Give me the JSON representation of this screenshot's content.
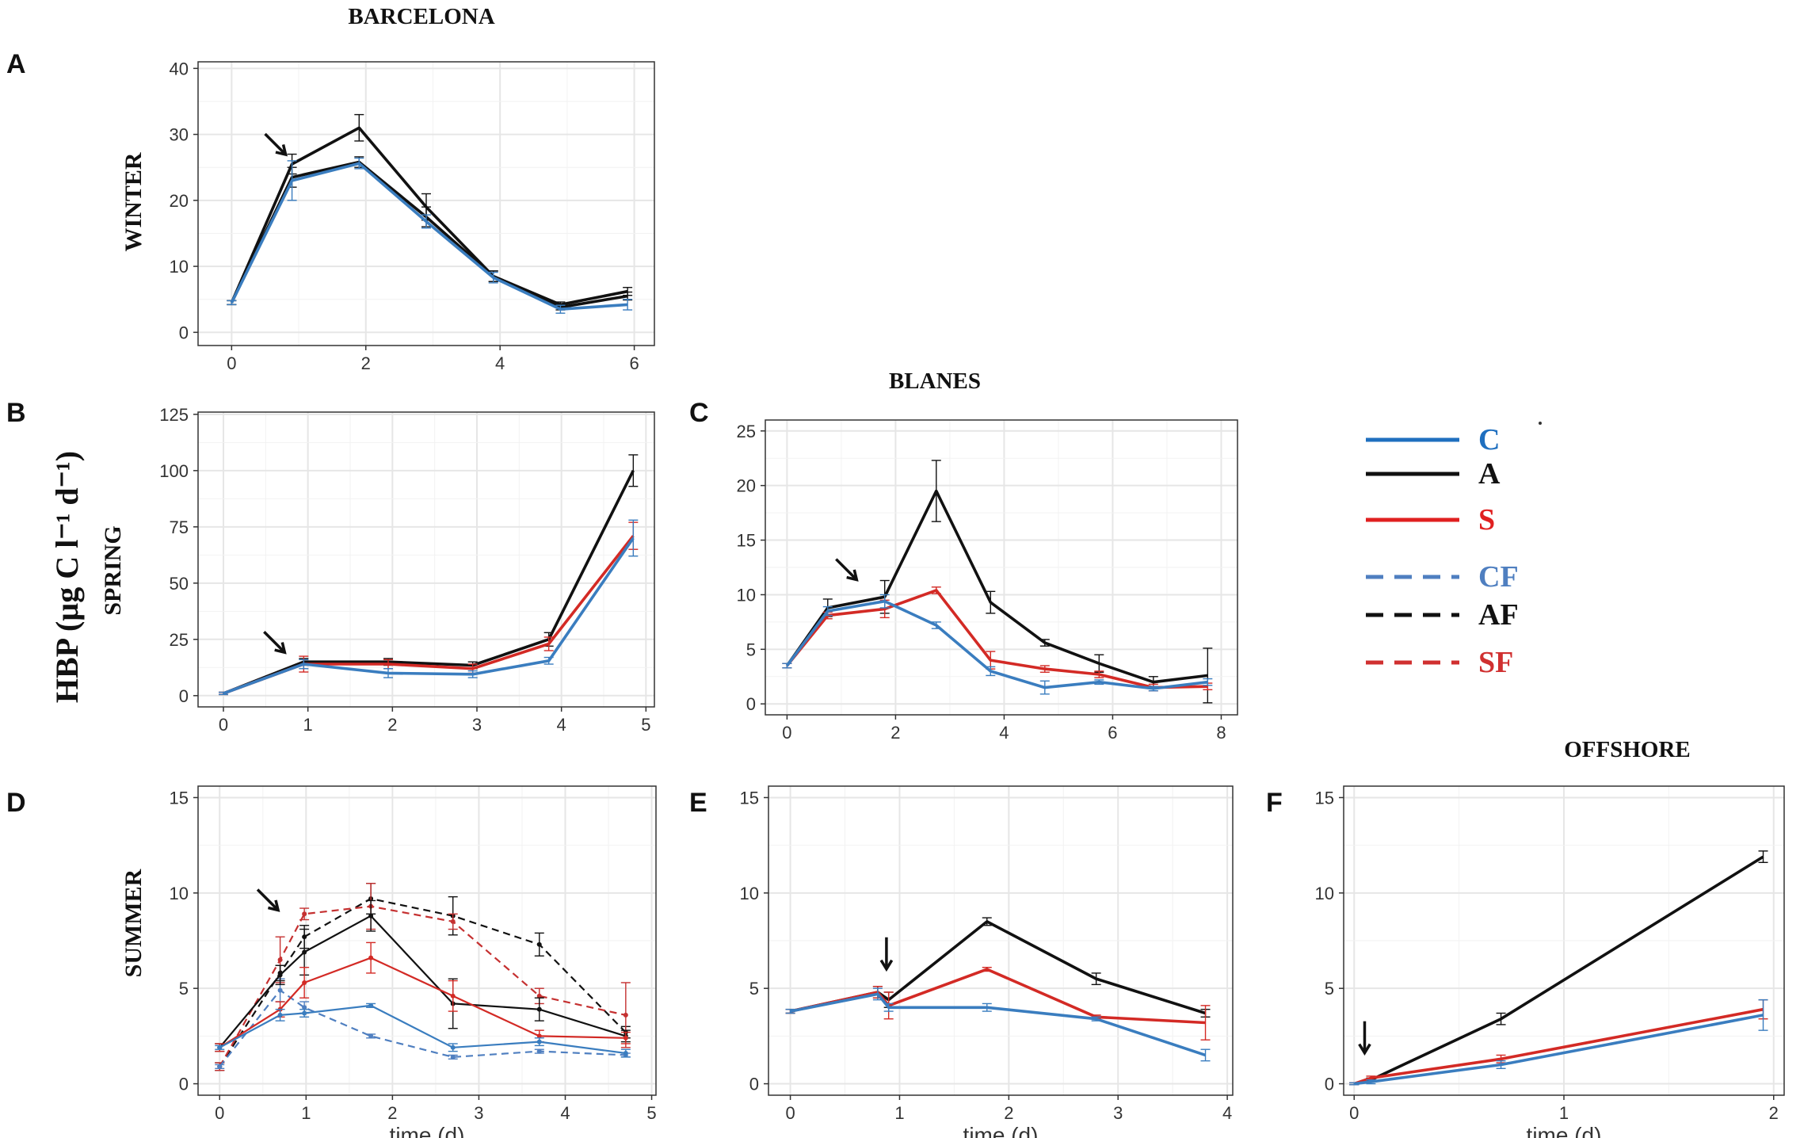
{
  "figure": {
    "ylabel": "HBP (µg C l⁻¹ d⁻¹)",
    "xlabel": "time (d)",
    "site_headers": [
      "BARCELONA",
      "BLANES",
      "OFFSHORE"
    ],
    "season_labels": [
      "WINTER",
      "SPRING",
      "SUMMER"
    ]
  },
  "colors": {
    "C": "#3a7dbf",
    "A": "#111111",
    "S": "#d32a25",
    "CF": "#4f7fc0",
    "AF": "#111111",
    "SF": "#c53030"
  },
  "legend": [
    {
      "key": "C",
      "label": "C",
      "color": "#1f6fbf",
      "dash": false
    },
    {
      "key": "A",
      "label": "A",
      "color": "#111111",
      "dash": false
    },
    {
      "key": "S",
      "label": "S",
      "color": "#e02020",
      "dash": false
    },
    {
      "key": "CF",
      "label": "CF",
      "color": "#4f7fc0",
      "dash": true
    },
    {
      "key": "AF",
      "label": "AF",
      "color": "#111111",
      "dash": true
    },
    {
      "key": "SF",
      "label": "SF",
      "color": "#d03030",
      "dash": true
    }
  ],
  "chart_data": [
    {
      "panel": "A",
      "type": "line",
      "site": "BARCELONA",
      "season": "WINTER",
      "xlabel": "",
      "xlim": [
        -0.5,
        6.3
      ],
      "ylim": [
        -2,
        41
      ],
      "xticks": [
        0,
        2,
        4,
        6
      ],
      "yticks": [
        0,
        10,
        20,
        30,
        40
      ],
      "arrow_at": [
        0.9,
        25.5
      ],
      "series": [
        {
          "name": "A",
          "dash": false,
          "x": [
            0,
            0.9,
            1.9,
            2.9,
            3.9,
            4.9,
            5.9
          ],
          "y": [
            4.5,
            25.5,
            31.0,
            19.0,
            8.5,
            4.2,
            6.2
          ],
          "err": [
            0.3,
            1.5,
            2.0,
            2.0,
            0.8,
            0.4,
            0.6
          ]
        },
        {
          "name": "A",
          "dash": false,
          "x": [
            0,
            0.9,
            1.9,
            2.9,
            3.9,
            4.9,
            5.9
          ],
          "y": [
            4.5,
            23.5,
            25.8,
            17.5,
            8.5,
            3.8,
            5.5
          ],
          "err": [
            0.3,
            1.5,
            0.8,
            1.5,
            0.8,
            0.4,
            0.6
          ]
        },
        {
          "name": "C",
          "dash": false,
          "x": [
            0,
            0.9,
            1.9,
            2.9,
            3.9,
            4.9,
            5.9
          ],
          "y": [
            4.5,
            23.0,
            25.6,
            16.8,
            8.3,
            3.5,
            4.2
          ],
          "err": [
            0.3,
            3.0,
            0.8,
            1.0,
            0.8,
            0.6,
            0.8
          ]
        }
      ]
    },
    {
      "panel": "B",
      "type": "line",
      "site": "BARCELONA",
      "season": "SPRING",
      "xlabel": "",
      "xlim": [
        -0.3,
        5.1
      ],
      "ylim": [
        -5,
        126
      ],
      "xticks": [
        0,
        1,
        2,
        3,
        4,
        5
      ],
      "yticks": [
        0,
        25,
        50,
        75,
        100,
        125
      ],
      "arrow_at": [
        0.8,
        15
      ],
      "series": [
        {
          "name": "A",
          "dash": false,
          "x": [
            0,
            0.95,
            1.95,
            2.95,
            3.85,
            4.85
          ],
          "y": [
            1,
            15,
            15,
            13.5,
            25,
            100
          ],
          "err": [
            0.5,
            1.5,
            1.5,
            1.5,
            3,
            7
          ]
        },
        {
          "name": "S",
          "dash": false,
          "x": [
            0,
            0.95,
            1.95,
            2.95,
            3.85,
            4.85
          ],
          "y": [
            1,
            14,
            14,
            12,
            23,
            71
          ],
          "err": [
            0.5,
            3.5,
            2,
            2,
            3,
            6
          ]
        },
        {
          "name": "C",
          "dash": false,
          "x": [
            0,
            0.95,
            1.95,
            2.95,
            3.85,
            4.85
          ],
          "y": [
            1,
            14,
            10,
            9.5,
            15.5,
            70
          ],
          "err": [
            0.5,
            2,
            2,
            1.5,
            1.5,
            8
          ]
        }
      ]
    },
    {
      "panel": "C",
      "type": "line",
      "site": "BLANES",
      "season": "SPRING",
      "xlabel": "",
      "xlim": [
        -0.4,
        8.3
      ],
      "ylim": [
        -1,
        26
      ],
      "xticks": [
        0,
        2,
        4,
        6,
        8
      ],
      "yticks": [
        0,
        5,
        10,
        15,
        20,
        25
      ],
      "arrow_at": [
        1.4,
        10.5
      ],
      "series": [
        {
          "name": "A",
          "dash": false,
          "x": [
            0,
            0.75,
            1.8,
            2.75,
            3.75,
            4.75,
            5.75,
            6.75,
            7.75
          ],
          "y": [
            3.5,
            8.8,
            9.8,
            19.5,
            9.3,
            5.6,
            3.7,
            2.0,
            2.6
          ],
          "err": [
            0.2,
            0.8,
            1.5,
            2.8,
            1.0,
            0.3,
            0.8,
            0.5,
            2.5
          ]
        },
        {
          "name": "S",
          "dash": false,
          "x": [
            0,
            0.75,
            1.8,
            2.75,
            3.75,
            4.75,
            5.75,
            6.75,
            7.75
          ],
          "y": [
            3.5,
            8.1,
            8.7,
            10.4,
            4.0,
            3.2,
            2.7,
            1.5,
            1.6
          ],
          "err": [
            0.2,
            0.3,
            0.8,
            0.3,
            0.8,
            0.3,
            0.3,
            0.3,
            0.3
          ]
        },
        {
          "name": "C",
          "dash": false,
          "x": [
            0,
            0.75,
            1.8,
            2.75,
            3.75,
            4.75,
            5.75,
            6.75,
            7.75
          ],
          "y": [
            3.5,
            8.5,
            9.4,
            7.2,
            3.0,
            1.5,
            2.0,
            1.4,
            2.0
          ],
          "err": [
            0.2,
            0.4,
            0.6,
            0.3,
            0.4,
            0.6,
            0.2,
            0.2,
            0.3
          ]
        }
      ]
    },
    {
      "panel": "D",
      "type": "line",
      "site": "BARCELONA",
      "season": "SUMMER",
      "xlabel": "time (d)",
      "xlim": [
        -0.25,
        5.05
      ],
      "ylim": [
        -0.6,
        15.6
      ],
      "xticks": [
        0,
        1,
        2,
        3,
        4,
        5
      ],
      "yticks": [
        0,
        5,
        10,
        15
      ],
      "arrow_at": [
        0.75,
        8.6
      ],
      "series": [
        {
          "name": "AF",
          "dash": true,
          "x": [
            0,
            0.7,
            0.98,
            1.75,
            2.7,
            3.7,
            4.7
          ],
          "y": [
            0.9,
            5.8,
            7.7,
            9.7,
            8.8,
            7.3,
            2.7
          ],
          "err": [
            0.2,
            0.4,
            0.6,
            0.8,
            1.0,
            0.6,
            0.3
          ]
        },
        {
          "name": "SF",
          "dash": true,
          "x": [
            0,
            0.7,
            0.98,
            1.75,
            2.7,
            3.7,
            4.7
          ],
          "y": [
            0.9,
            6.5,
            8.9,
            9.3,
            8.5,
            4.6,
            3.6
          ],
          "err": [
            0.2,
            1.2,
            0.3,
            1.2,
            0.4,
            0.4,
            1.7
          ]
        },
        {
          "name": "CF",
          "dash": true,
          "x": [
            0,
            0.7,
            0.98,
            1.75,
            2.7,
            3.7,
            4.7
          ],
          "y": [
            0.9,
            4.9,
            4.0,
            2.5,
            1.4,
            1.7,
            1.5
          ],
          "err": [
            0.1,
            0.6,
            0.3,
            0.1,
            0.1,
            0.1,
            0.1
          ]
        },
        {
          "name": "A",
          "dash": false,
          "x": [
            0,
            0.7,
            0.98,
            1.75,
            2.7,
            3.7,
            4.7
          ],
          "y": [
            1.9,
            5.7,
            6.9,
            8.8,
            4.2,
            3.9,
            2.5
          ],
          "err": [
            0.2,
            0.5,
            1.2,
            0.8,
            1.3,
            0.6,
            0.3
          ]
        },
        {
          "name": "S",
          "dash": false,
          "x": [
            0,
            0.7,
            0.98,
            1.75,
            2.7,
            3.7,
            4.7
          ],
          "y": [
            1.9,
            3.9,
            5.3,
            6.6,
            4.6,
            2.5,
            2.4
          ],
          "err": [
            0.2,
            0.4,
            0.8,
            0.8,
            0.8,
            0.3,
            0.3
          ]
        },
        {
          "name": "C",
          "dash": false,
          "x": [
            0,
            0.7,
            0.98,
            1.75,
            2.7,
            3.7,
            4.7
          ],
          "y": [
            1.9,
            3.6,
            3.7,
            4.1,
            1.9,
            2.2,
            1.6
          ],
          "err": [
            0.1,
            0.3,
            0.2,
            0.1,
            0.2,
            0.2,
            0.2
          ]
        }
      ]
    },
    {
      "panel": "E",
      "type": "line",
      "site": "BLANES",
      "season": "SUMMER",
      "xlabel": "time (d)",
      "xlim": [
        -0.2,
        4.05
      ],
      "ylim": [
        -0.6,
        15.6
      ],
      "xticks": [
        0,
        1,
        2,
        3,
        4
      ],
      "yticks": [
        0,
        5,
        10,
        15
      ],
      "arrow_at": [
        0.88,
        5.6
      ],
      "series": [
        {
          "name": "A",
          "dash": false,
          "x": [
            0,
            0.8,
            0.9,
            1.8,
            2.8,
            3.8
          ],
          "y": [
            3.8,
            4.8,
            4.4,
            8.5,
            5.5,
            3.7
          ],
          "err": [
            0.1,
            0.3,
            0.4,
            0.2,
            0.3,
            0.2
          ]
        },
        {
          "name": "S",
          "dash": false,
          "x": [
            0,
            0.8,
            0.9,
            1.8,
            2.8,
            3.8
          ],
          "y": [
            3.8,
            4.8,
            4.1,
            6.0,
            3.5,
            3.2
          ],
          "err": [
            0.1,
            0.3,
            0.7,
            0.1,
            0.1,
            0.9
          ]
        },
        {
          "name": "C",
          "dash": false,
          "x": [
            0,
            0.8,
            0.9,
            1.8,
            2.8,
            3.8
          ],
          "y": [
            3.8,
            4.7,
            4.0,
            4.0,
            3.4,
            1.5
          ],
          "err": [
            0.1,
            0.3,
            0.2,
            0.2,
            0.1,
            0.3
          ]
        }
      ]
    },
    {
      "panel": "F",
      "type": "line",
      "site": "OFFSHORE",
      "season": "SUMMER",
      "xlabel": "time (d)",
      "xlim": [
        -0.05,
        2.05
      ],
      "ylim": [
        -0.6,
        15.6
      ],
      "xticks": [
        0,
        1,
        2
      ],
      "yticks": [
        0,
        5,
        10,
        15
      ],
      "arrow_at": [
        0.05,
        1.2
      ],
      "series": [
        {
          "name": "A",
          "dash": false,
          "x": [
            0,
            0.08,
            0.7,
            1.95
          ],
          "y": [
            0,
            0.2,
            3.4,
            11.9
          ],
          "err": [
            0.05,
            0.1,
            0.3,
            0.3
          ]
        },
        {
          "name": "S",
          "dash": false,
          "x": [
            0,
            0.08,
            0.7,
            1.95
          ],
          "y": [
            0,
            0.3,
            1.3,
            3.9
          ],
          "err": [
            0.05,
            0.1,
            0.2,
            0.5
          ]
        },
        {
          "name": "C",
          "dash": false,
          "x": [
            0,
            0.08,
            0.7,
            1.95
          ],
          "y": [
            0,
            0.1,
            1.0,
            3.6
          ],
          "err": [
            0.05,
            0.1,
            0.2,
            0.8
          ]
        }
      ]
    }
  ]
}
